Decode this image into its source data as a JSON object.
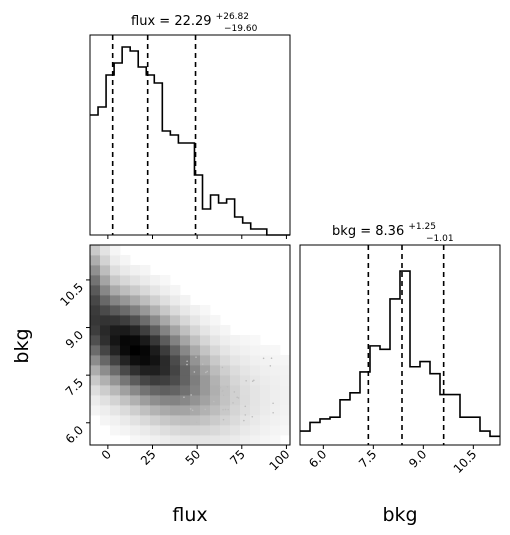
{
  "chart_data": {
    "type": "corner",
    "parameters": [
      "flux",
      "bkg"
    ],
    "flux_hist": {
      "title_param": "flux",
      "title_value": "22.29",
      "title_plus": "+26.82",
      "title_minus": "−19.60",
      "bin_edges": [
        -10,
        -5.5,
        -1,
        3.5,
        8,
        12.5,
        17,
        21.5,
        26,
        30.5,
        35,
        39.5,
        44,
        48.5,
        53,
        57.5,
        62,
        66.5,
        71,
        75.5,
        80,
        84.5,
        89,
        93.5,
        98,
        102
      ],
      "counts": [
        60,
        64,
        80,
        86,
        94,
        92,
        84,
        80,
        76,
        52,
        50,
        46,
        46,
        30,
        13,
        20,
        16,
        18,
        9,
        6,
        3,
        3,
        0,
        0,
        0
      ],
      "ylim": [
        0,
        100
      ],
      "quantiles": [
        2.7,
        22.3,
        49.1
      ]
    },
    "bkg_hist": {
      "title_param": "bkg",
      "title_value": "8.36",
      "title_plus": "+1.25",
      "title_minus": "−1.01",
      "bin_edges": [
        5.3,
        5.6,
        5.9,
        6.2,
        6.5,
        6.8,
        7.1,
        7.4,
        7.7,
        8.0,
        8.3,
        8.6,
        8.9,
        9.2,
        9.5,
        9.8,
        10.1,
        10.4,
        10.7,
        11.0,
        11.3
      ],
      "counts": [
        8,
        13,
        15,
        16,
        26,
        30,
        42,
        57,
        55,
        84,
        100,
        45,
        48,
        41,
        29,
        29,
        16,
        16,
        8,
        5
      ],
      "ylim": [
        0,
        115
      ],
      "quantiles": [
        7.35,
        8.36,
        9.61
      ]
    },
    "joint_2d": {
      "x_param": "flux",
      "y_param": "bkg",
      "xlim": [
        -10,
        102
      ],
      "ylim": [
        5.3,
        11.6
      ]
    },
    "xticks_flux": [
      0,
      25,
      50,
      75,
      100
    ],
    "xticks_flux_labels": [
      "0",
      "25",
      "50",
      "75",
      "100"
    ],
    "yticks_bkg": [
      6.0,
      7.5,
      9.0,
      10.5
    ],
    "yticks_bkg_labels": [
      "6.0",
      "7.5",
      "9.0",
      "10.5"
    ],
    "xticks_bkg": [
      6.0,
      7.5,
      9.0,
      10.5
    ],
    "xticks_bkg_labels": [
      "6.0",
      "7.5",
      "9.0",
      "10.5"
    ],
    "xlabel_left": "flux",
    "xlabel_right": "bkg",
    "ylabel": "bkg"
  }
}
